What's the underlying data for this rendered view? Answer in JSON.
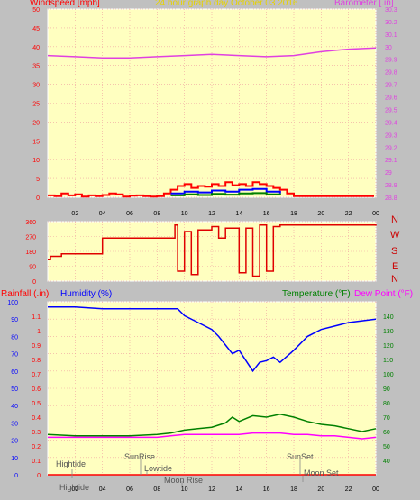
{
  "header": {
    "left_label": "Windspeed [mph]",
    "title": "24 hour graph day   October 03 2016",
    "right_label": "Barometer [.in]"
  },
  "direction_labels": [
    "N",
    "W",
    "S",
    "E",
    "N"
  ],
  "bottom_header": {
    "rain_label": "Rainfall (.in)",
    "humidity_label": "Humidity (%)",
    "temperature_label": "Temperature (°F)",
    "dewpoint_label": "Dew Point (°F)"
  },
  "colors": {
    "plot_bg": "#ffffc0",
    "grid": "#f0a0a0",
    "wind_avg": "#ff0000",
    "wind_gust": "#0000ff",
    "wind_low": "#008000",
    "barometer": "#e040e0",
    "direction": "#e00000",
    "humidity": "#0000ff",
    "temperature": "#008000",
    "dewpoint": "#ff00ff",
    "rain": "#ff0000"
  },
  "chart_data": [
    {
      "type": "line",
      "name_ref": "wind-barometer",
      "x_ticks": [
        "02",
        "04",
        "06",
        "08",
        "10",
        "12",
        "14",
        "16",
        "18",
        "20",
        "22",
        "00"
      ],
      "left_axis": {
        "ylim": [
          0,
          50
        ],
        "ticks": [
          "0",
          "5",
          "10",
          "15",
          "20",
          "25",
          "30",
          "35",
          "40",
          "45",
          "50"
        ]
      },
      "right_axis": {
        "ylim": [
          28.8,
          30.3
        ],
        "ticks": [
          "28.8",
          "28.9",
          "29",
          "29.1",
          "29.2",
          "29.3",
          "29.4",
          "29.5",
          "29.6",
          "29.7",
          "29.8",
          "29.9",
          "30",
          "30.1",
          "30.2",
          "30.3"
        ]
      },
      "barometer": {
        "x": [
          0,
          2,
          4,
          6,
          8,
          10,
          12,
          14,
          16,
          18,
          20,
          22,
          24
        ],
        "values": [
          29.93,
          29.92,
          29.91,
          29.91,
          29.92,
          29.93,
          29.94,
          29.93,
          29.92,
          29.93,
          29.96,
          29.98,
          29.99
        ]
      },
      "wind_avg": {
        "x": [
          0,
          0.5,
          1,
          1.5,
          2,
          2.5,
          3,
          3.5,
          4,
          4.5,
          5,
          5.5,
          6,
          6.5,
          7,
          7.5,
          8,
          8.5,
          9,
          9.5,
          10,
          10.5,
          11,
          11.5,
          12,
          12.5,
          13,
          13.5,
          14,
          14.5,
          15,
          15.5,
          16,
          16.5,
          17,
          17.5,
          18,
          23.8
        ],
        "values": [
          0.5,
          0.3,
          1,
          0.5,
          0.8,
          0.2,
          0.5,
          0.3,
          0.6,
          1,
          0.8,
          0.2,
          0.4,
          0.5,
          0.3,
          0.2,
          0.3,
          1,
          2,
          3,
          3.5,
          2.5,
          3,
          2.8,
          3.5,
          3,
          4,
          3.2,
          3.5,
          3,
          4,
          3.5,
          3,
          2.5,
          2,
          1,
          0.3,
          0.5
        ]
      },
      "wind_gust": {
        "x": [
          9,
          10,
          11,
          12,
          13,
          14,
          15,
          16,
          17
        ],
        "values": [
          1,
          1.5,
          1.3,
          1.8,
          1.5,
          2,
          2.2,
          1.5,
          1
        ]
      },
      "wind_low": {
        "x": [
          9,
          10,
          11,
          12,
          13,
          14,
          15,
          16,
          17
        ],
        "values": [
          0.5,
          0.8,
          0.6,
          0.9,
          0.7,
          1,
          1.1,
          0.8,
          0.5
        ]
      }
    },
    {
      "type": "line",
      "name_ref": "wind-direction",
      "y_ticks": [
        "0",
        "90",
        "180",
        "270",
        "360"
      ],
      "ylim": [
        0,
        360
      ],
      "x": [
        0,
        0.2,
        1,
        3.6,
        4,
        9,
        9.3,
        9.5,
        10,
        10.5,
        11,
        12,
        12.5,
        13,
        14,
        14.5,
        15,
        15.5,
        16,
        16.5,
        17,
        24
      ],
      "values": [
        130,
        150,
        165,
        165,
        260,
        260,
        340,
        60,
        300,
        40,
        310,
        330,
        260,
        320,
        50,
        320,
        30,
        340,
        60,
        330,
        340,
        335
      ]
    },
    {
      "type": "line",
      "name_ref": "humidity-temp-rain",
      "x_ticks": [
        "02",
        "04",
        "06",
        "08",
        "10",
        "12",
        "14",
        "16",
        "18",
        "20",
        "22",
        "00"
      ],
      "rain_axis": {
        "ylim": [
          0,
          1.2
        ],
        "ticks": [
          "0",
          "0.1",
          "0.2",
          "0.3",
          "0.4",
          "0.5",
          "0.6",
          "0.7",
          "0.8",
          "0.9",
          "1",
          "1.1"
        ]
      },
      "humidity_axis": {
        "ylim": [
          0,
          100
        ],
        "ticks": [
          "0",
          "10",
          "20",
          "30",
          "40",
          "50",
          "60",
          "70",
          "80",
          "90",
          "100"
        ]
      },
      "temperature_axis": {
        "ylim": [
          30,
          150
        ],
        "ticks": [
          "40",
          "50",
          "60",
          "70",
          "80",
          "90",
          "100",
          "110",
          "120",
          "130",
          "140"
        ]
      },
      "humidity": {
        "x": [
          0,
          2,
          4,
          6,
          8,
          9,
          9.5,
          10,
          11,
          12,
          12.5,
          13,
          13.5,
          14,
          14.5,
          15,
          15.5,
          16,
          16.5,
          17,
          18,
          19,
          20,
          21,
          22,
          23,
          24
        ],
        "values": [
          97,
          97,
          96,
          96,
          96,
          96,
          96,
          92,
          88,
          84,
          80,
          75,
          70,
          72,
          66,
          60,
          65,
          66,
          68,
          65,
          72,
          80,
          84,
          86,
          88,
          89,
          90
        ]
      },
      "temperature": {
        "x": [
          0,
          2,
          4,
          6,
          8,
          9,
          10,
          11,
          12,
          13,
          13.5,
          14,
          15,
          16,
          17,
          18,
          19,
          20,
          21,
          22,
          23,
          24
        ],
        "values": [
          58,
          57,
          57,
          57,
          58,
          59,
          61,
          62,
          63,
          66,
          70,
          67,
          71,
          70,
          72,
          70,
          67,
          65,
          64,
          62,
          60,
          62
        ]
      },
      "dewpoint": {
        "x": [
          0,
          2,
          4,
          6,
          8,
          9,
          10,
          11,
          12,
          13,
          14,
          15,
          16,
          17,
          18,
          19,
          20,
          21,
          22,
          23,
          24
        ],
        "values": [
          56,
          56,
          56,
          56,
          56,
          57,
          58,
          58,
          58,
          58,
          58,
          59,
          59,
          59,
          58,
          58,
          57,
          57,
          56,
          55,
          56
        ]
      },
      "rain": {
        "x": [
          0,
          24
        ],
        "values": [
          0,
          0
        ]
      }
    }
  ],
  "astro_labels": {
    "hightide_1": "Hightide",
    "hightide_2": "Hightide",
    "sunrise": "SunRise",
    "lowtide": "Lowtide",
    "moonrise": "Moon Rise",
    "sunset": "SunSet",
    "moonset": "Moon Set"
  }
}
